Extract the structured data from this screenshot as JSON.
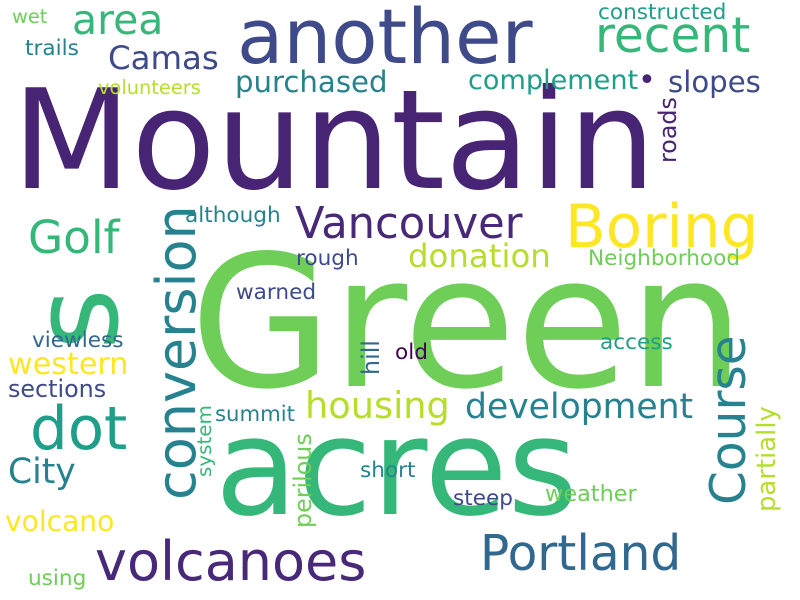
{
  "background": "#ffffff",
  "palette": {
    "deep_purple": "#482878",
    "purple": "#482475",
    "indigo": "#3e4a89",
    "blue": "#31688e",
    "teal_blue": "#26828e",
    "teal": "#1f9e89",
    "green_teal": "#35b779",
    "green": "#6ece58",
    "yellow_green": "#b5de2b",
    "yellow": "#fde725"
  },
  "words": [
    {
      "text": "Mountain",
      "color": "#482475"
    },
    {
      "text": "Green",
      "color": "#6ece58"
    },
    {
      "text": "acres",
      "color": "#35b779"
    },
    {
      "text": "another",
      "color": "#3e4a89"
    },
    {
      "text": "s",
      "color": "#35b779"
    },
    {
      "text": "Boring",
      "color": "#fde725"
    },
    {
      "text": "Portland",
      "color": "#31688e"
    },
    {
      "text": "volcanoes",
      "color": "#482878"
    },
    {
      "text": "recent",
      "color": "#35b779"
    },
    {
      "text": "area",
      "color": "#35b779"
    },
    {
      "text": "dot",
      "color": "#1f9e89"
    },
    {
      "text": "Vancouver",
      "color": "#482878"
    },
    {
      "text": "Golf",
      "color": "#35b779"
    },
    {
      "text": "conversion",
      "color": "#26828e"
    },
    {
      "text": "Course",
      "color": "#26828e"
    },
    {
      "text": "housing",
      "color": "#b5de2b"
    },
    {
      "text": "development",
      "color": "#26828e"
    },
    {
      "text": "Camas",
      "color": "#3e4a89"
    },
    {
      "text": "purchased",
      "color": "#26828e"
    },
    {
      "text": "complement",
      "color": "#1f9e89"
    },
    {
      "text": "slopes",
      "color": "#3e4a89"
    },
    {
      "text": "donation",
      "color": "#b5de2b"
    },
    {
      "text": "western",
      "color": "#fde725"
    },
    {
      "text": "City",
      "color": "#26828e"
    },
    {
      "text": "volcano",
      "color": "#fde725"
    },
    {
      "text": "•",
      "color": "#482475"
    },
    {
      "text": "constructed",
      "color": "#1f9e89"
    },
    {
      "text": "wet",
      "color": "#6ece58"
    },
    {
      "text": "trails",
      "color": "#26828e"
    },
    {
      "text": "volunteers",
      "color": "#b5de2b"
    },
    {
      "text": "roads",
      "color": "#482475"
    },
    {
      "text": "although",
      "color": "#26828e"
    },
    {
      "text": "Neighborhood",
      "color": "#6ece58"
    },
    {
      "text": "rough",
      "color": "#3e4a89"
    },
    {
      "text": "warned",
      "color": "#3e4a89"
    },
    {
      "text": "viewless",
      "color": "#31688e"
    },
    {
      "text": "sections",
      "color": "#3e4a89"
    },
    {
      "text": "hill",
      "color": "#31688e"
    },
    {
      "text": "old",
      "color": "#440154"
    },
    {
      "text": "access",
      "color": "#1f9e89"
    },
    {
      "text": "summit",
      "color": "#26828e"
    },
    {
      "text": "system",
      "color": "#35b779"
    },
    {
      "text": "perilous",
      "color": "#6ece58"
    },
    {
      "text": "short",
      "color": "#26828e"
    },
    {
      "text": "steep",
      "color": "#3e4a89"
    },
    {
      "text": "weather",
      "color": "#6ece58"
    },
    {
      "text": "partially",
      "color": "#b5de2b"
    },
    {
      "text": "using",
      "color": "#6ece58"
    }
  ]
}
